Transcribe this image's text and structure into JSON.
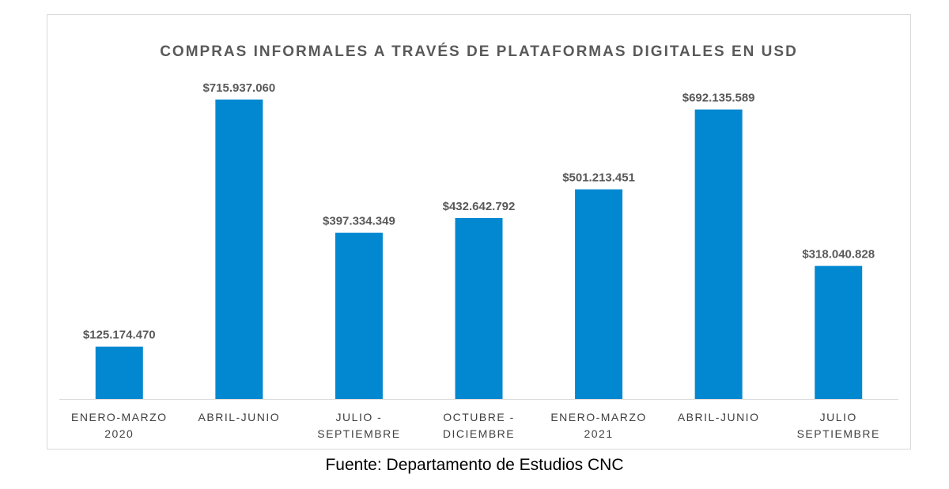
{
  "chart_data": {
    "type": "bar",
    "title": "COMPRAS INFORMALES A TRAVÉS DE PLATAFORMAS DIGITALES EN USD",
    "categories": [
      [
        "ENERO-MARZO",
        "2020"
      ],
      [
        "ABRIL-JUNIO"
      ],
      [
        "JULIO -",
        "SEPTIEMBRE"
      ],
      [
        "OCTUBRE -",
        "DICIEMBRE"
      ],
      [
        "ENERO-MARZO",
        "2021"
      ],
      [
        "ABRIL-JUNIO"
      ],
      [
        "JULIO",
        "SEPTIEMBRE"
      ]
    ],
    "values": [
      125174470,
      715937060,
      397334349,
      432642792,
      501213451,
      692135589,
      318040828
    ],
    "value_labels": [
      "$125.174.470",
      "$715.937.060",
      "$397.334.349",
      "$432.642.792",
      "$501.213.451",
      "$692.135.589",
      "$318.040.828"
    ],
    "xlabel": "",
    "ylabel": "",
    "ylim": [
      0,
      715937060
    ],
    "grid": false,
    "legend": "none",
    "bar_color": "#0288d1"
  },
  "source": "Fuente: Departamento de Estudios CNC"
}
